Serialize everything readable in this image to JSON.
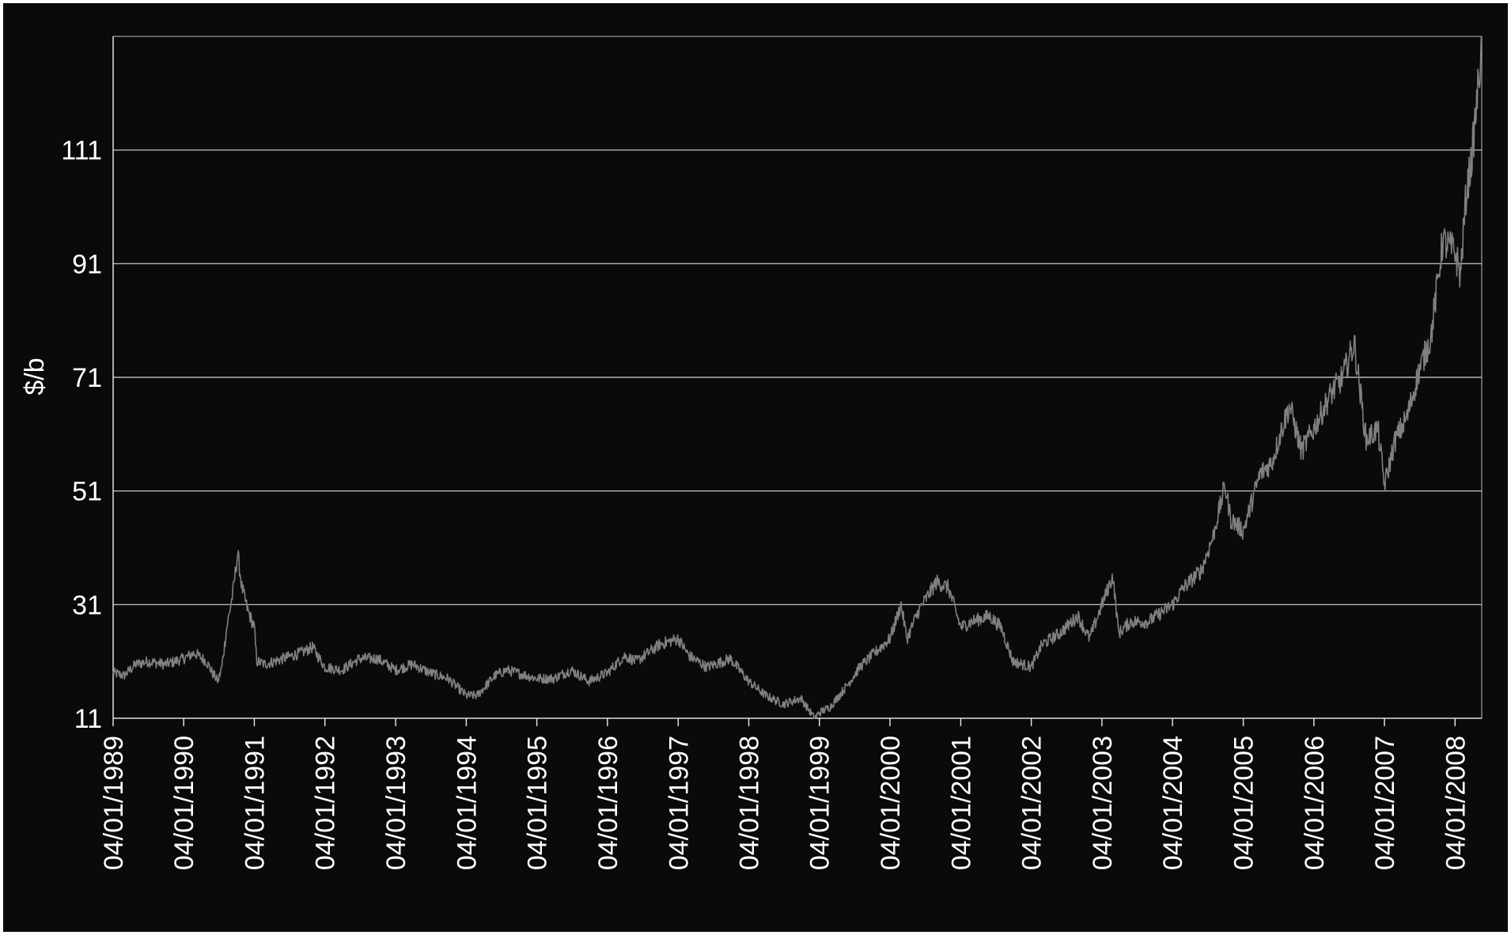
{
  "chart_data": {
    "type": "line",
    "title": "",
    "xlabel": "",
    "ylabel": "$/b",
    "ylim": [
      11,
      131
    ],
    "yticks": [
      11,
      31,
      51,
      71,
      91,
      111
    ],
    "grid": true,
    "legend": "none",
    "colors": {
      "background": "#0a0a0a",
      "line": "#808080",
      "grid": "#d9d9d9",
      "text": "#ffffff"
    },
    "x_range": [
      "04/01/1989",
      "21/05/2008"
    ],
    "xticks": [
      "04/01/1989",
      "04/01/1990",
      "04/01/1991",
      "04/01/1992",
      "04/01/1993",
      "04/01/1994",
      "04/01/1995",
      "04/01/1996",
      "04/01/1997",
      "04/01/1998",
      "04/01/1999",
      "04/01/2000",
      "04/01/2001",
      "04/01/2002",
      "04/01/2003",
      "04/01/2004",
      "04/01/2005",
      "04/01/2006",
      "04/01/2007",
      "04/01/2008"
    ],
    "series": [
      {
        "values": [
          [
            "04/01/1989",
            19
          ],
          [
            "01/03/1989",
            18.5
          ],
          [
            "01/05/1989",
            20.5
          ],
          [
            "01/07/1989",
            21
          ],
          [
            "01/10/1989",
            20.5
          ],
          [
            "04/01/1990",
            21.5
          ],
          [
            "01/03/1990",
            22.5
          ],
          [
            "01/05/1990",
            21
          ],
          [
            "01/06/1990",
            19
          ],
          [
            "01/07/1990",
            17.5
          ],
          [
            "20/07/1990",
            20
          ],
          [
            "15/08/1990",
            27
          ],
          [
            "15/09/1990",
            33
          ],
          [
            "10/10/1990",
            40
          ],
          [
            "01/11/1990",
            34
          ],
          [
            "01/12/1990",
            30
          ],
          [
            "04/01/1991",
            27
          ],
          [
            "17/01/1991",
            21
          ],
          [
            "01/03/1991",
            20.5
          ],
          [
            "01/06/1991",
            21.5
          ],
          [
            "01/09/1991",
            22.5
          ],
          [
            "01/11/1991",
            23.5
          ],
          [
            "04/01/1992",
            20
          ],
          [
            "01/04/1992",
            19.5
          ],
          [
            "01/07/1992",
            21.5
          ],
          [
            "01/10/1992",
            21.5
          ],
          [
            "04/01/1993",
            19.5
          ],
          [
            "01/04/1993",
            20.5
          ],
          [
            "01/07/1993",
            19
          ],
          [
            "01/10/1993",
            18
          ],
          [
            "04/01/1994",
            15
          ],
          [
            "01/03/1994",
            15
          ],
          [
            "01/06/1994",
            18.5
          ],
          [
            "01/08/1994",
            19.5
          ],
          [
            "04/01/1995",
            18
          ],
          [
            "01/04/1995",
            18
          ],
          [
            "01/07/1995",
            19.5
          ],
          [
            "01/10/1995",
            17.5
          ],
          [
            "04/01/1996",
            19
          ],
          [
            "01/04/1996",
            22
          ],
          [
            "01/06/1996",
            21
          ],
          [
            "01/10/1996",
            24
          ],
          [
            "04/01/1997",
            25
          ],
          [
            "01/03/1997",
            22
          ],
          [
            "01/06/1997",
            20
          ],
          [
            "01/10/1997",
            21.5
          ],
          [
            "04/01/1998",
            17.5
          ],
          [
            "01/04/1998",
            15
          ],
          [
            "01/07/1998",
            13.5
          ],
          [
            "01/10/1998",
            14.5
          ],
          [
            "10/12/1998",
            11
          ],
          [
            "04/01/1999",
            12
          ],
          [
            "01/03/1999",
            13
          ],
          [
            "01/06/1999",
            17
          ],
          [
            "01/08/1999",
            20
          ],
          [
            "01/10/1999",
            22
          ],
          [
            "04/01/2000",
            25
          ],
          [
            "01/03/2000",
            31
          ],
          [
            "01/04/2000",
            25
          ],
          [
            "01/06/2000",
            30
          ],
          [
            "01/09/2000",
            35
          ],
          [
            "01/11/2000",
            34
          ],
          [
            "04/01/2001",
            27
          ],
          [
            "01/03/2001",
            28
          ],
          [
            "01/06/2001",
            29
          ],
          [
            "01/08/2001",
            27
          ],
          [
            "01/10/2001",
            21
          ],
          [
            "04/01/2002",
            20
          ],
          [
            "01/03/2002",
            24
          ],
          [
            "01/06/2002",
            26
          ],
          [
            "01/09/2002",
            29
          ],
          [
            "01/11/2002",
            25
          ],
          [
            "04/01/2003",
            31
          ],
          [
            "01/03/2003",
            36
          ],
          [
            "01/04/2003",
            26
          ],
          [
            "01/06/2003",
            28
          ],
          [
            "01/09/2003",
            28
          ],
          [
            "04/01/2004",
            31
          ],
          [
            "01/03/2004",
            34
          ],
          [
            "01/06/2004",
            37
          ],
          [
            "01/08/2004",
            43
          ],
          [
            "01/10/2004",
            52
          ],
          [
            "01/11/2004",
            46
          ],
          [
            "04/01/2005",
            44
          ],
          [
            "01/04/2005",
            54
          ],
          [
            "01/06/2005",
            56
          ],
          [
            "01/08/2005",
            63
          ],
          [
            "01/09/2005",
            66
          ],
          [
            "01/11/2005",
            58
          ],
          [
            "04/01/2006",
            62
          ],
          [
            "01/04/2006",
            68
          ],
          [
            "01/06/2006",
            71
          ],
          [
            "01/08/2006",
            77
          ],
          [
            "01/10/2006",
            60
          ],
          [
            "01/12/2006",
            62
          ],
          [
            "04/01/2007",
            52
          ],
          [
            "01/03/2007",
            60
          ],
          [
            "01/05/2007",
            64
          ],
          [
            "01/07/2007",
            72
          ],
          [
            "01/09/2007",
            78
          ],
          [
            "01/11/2007",
            95
          ],
          [
            "04/01/2008",
            93
          ],
          [
            "01/02/2008",
            89
          ],
          [
            "01/03/2008",
            103
          ],
          [
            "01/04/2008",
            110
          ],
          [
            "10/05/2008",
            125
          ],
          [
            "21/05/2008",
            131
          ]
        ]
      }
    ]
  }
}
